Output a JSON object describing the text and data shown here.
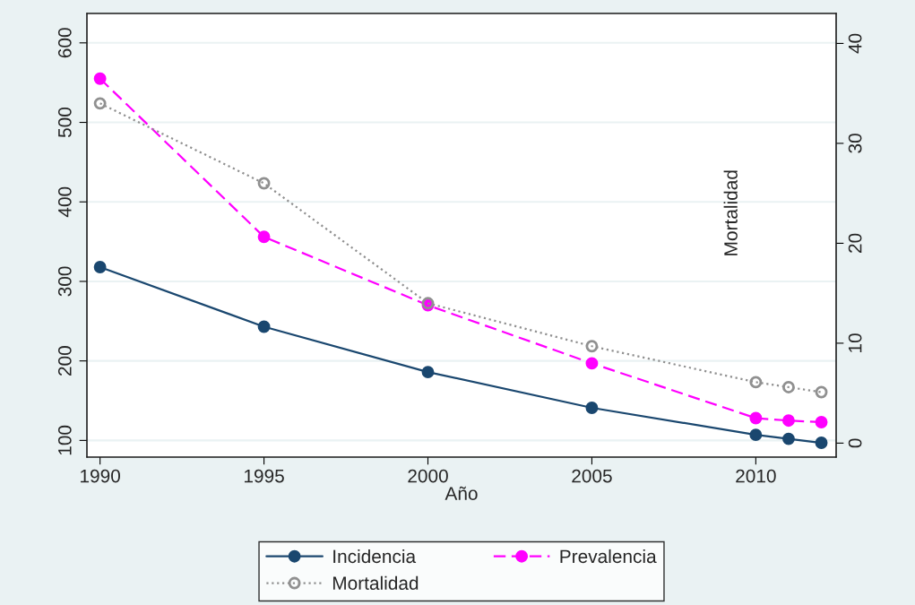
{
  "chart_data": {
    "type": "line",
    "xlabel": "Año",
    "y2label": "Mortalidad",
    "x": [
      1990,
      1995,
      2000,
      2005,
      2010,
      2011,
      2012
    ],
    "series": [
      {
        "name": "Incidencia",
        "color": "#1a476f",
        "values": [
          318,
          243,
          186,
          141,
          107,
          102,
          97
        ],
        "line_style": "solid",
        "marker": "circle"
      },
      {
        "name": "Prevalencia",
        "color": "#ff00ff",
        "values": [
          555,
          356,
          270,
          197,
          128,
          125,
          123
        ],
        "line_style": "dashed",
        "marker": "circle"
      },
      {
        "name": "Mortalidad",
        "color": "#909090",
        "values": [
          34.0,
          26.0,
          14.0,
          9.7,
          6.1,
          5.6,
          5.1
        ],
        "axis": "y2",
        "line_style": "dotted",
        "marker": "circle"
      }
    ],
    "xlim": [
      1989.6,
      2012.45
    ],
    "xticks": [
      1990,
      1995,
      2000,
      2005,
      2010
    ],
    "ylim": [
      79,
      637
    ],
    "yticks": [
      100,
      200,
      300,
      400,
      500,
      600
    ],
    "y2lim": [
      -1.4,
      43
    ],
    "y2ticks": [
      0,
      10,
      20,
      30,
      40
    ],
    "grid": "y",
    "legend": "bottom"
  }
}
